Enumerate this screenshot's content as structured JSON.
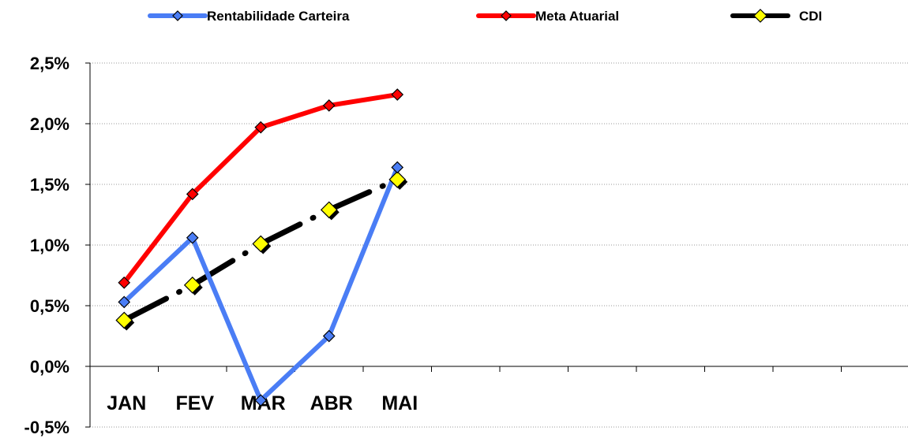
{
  "chart_data": {
    "type": "line",
    "categories": [
      "JAN",
      "FEV",
      "MAR",
      "ABR",
      "MAI"
    ],
    "series": [
      {
        "name": "Rentabilidade Carteira",
        "values": [
          0.53,
          1.06,
          -0.28,
          0.25,
          1.64
        ],
        "color": "#4a7df5",
        "line_style": "solid",
        "marker": "diamond"
      },
      {
        "name": "Meta Atuarial",
        "values": [
          0.69,
          1.42,
          1.97,
          2.15,
          2.24
        ],
        "color": "#ff0000",
        "line_style": "solid",
        "marker": "diamond"
      },
      {
        "name": "CDI",
        "values": [
          0.38,
          0.67,
          1.01,
          1.29,
          1.54
        ],
        "color": "#000000",
        "line_style": "dash-dot",
        "marker": "diamond",
        "marker_color": "#ffff00"
      }
    ],
    "ylim": [
      -0.5,
      2.5
    ],
    "yticks": [
      "-0,5%",
      "0,0%",
      "0,5%",
      "1,0%",
      "1,5%",
      "2,0%",
      "2,5%"
    ],
    "ytick_values": [
      -0.5,
      0,
      0.5,
      1.0,
      1.5,
      2.0,
      2.5
    ],
    "n_slots": 12,
    "grid": "horizontal dotted",
    "legend_position": "top"
  }
}
